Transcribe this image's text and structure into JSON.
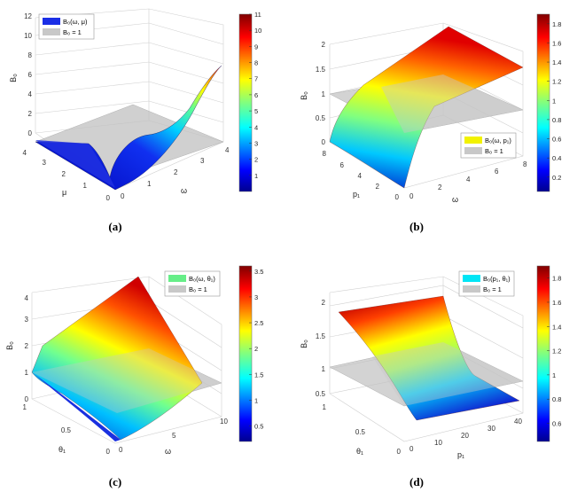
{
  "chart_data": [
    {
      "type": "surface3d",
      "caption": "(a)",
      "zlabel": "B₀",
      "xlabel": "ω",
      "ylabel": "μ",
      "xticks": [
        "0",
        "1",
        "2",
        "3",
        "4"
      ],
      "yticks": [
        "0",
        "1",
        "2",
        "3",
        "4"
      ],
      "zticks": [
        "0",
        "2",
        "4",
        "6",
        "8",
        "10",
        "12"
      ],
      "xlim": [
        0,
        4
      ],
      "ylim": [
        0,
        4
      ],
      "zlim": [
        0,
        12
      ],
      "colorbar_ticks": [
        "1",
        "2",
        "3",
        "4",
        "5",
        "6",
        "7",
        "8",
        "9",
        "10",
        "11"
      ],
      "colorbar_range": [
        0,
        11
      ],
      "legend": [
        {
          "label": "B₀(ω, μ)",
          "color": "#1a2ee6"
        },
        {
          "label": "B₀ = 1",
          "color": "#c8c8c8"
        }
      ],
      "legend_position": "top-left",
      "surface_max": 10,
      "plane_level": 1
    },
    {
      "type": "surface3d",
      "caption": "(b)",
      "zlabel": "B₀",
      "xlabel": "ω",
      "ylabel": "p₁",
      "xticks": [
        "0",
        "2",
        "4",
        "6",
        "8"
      ],
      "yticks": [
        "0",
        "2",
        "4",
        "6",
        "8"
      ],
      "zticks": [
        "0",
        "0.5",
        "1",
        "1.5",
        "2"
      ],
      "xlim": [
        0,
        8
      ],
      "ylim": [
        0,
        8
      ],
      "zlim": [
        0,
        2
      ],
      "colorbar_ticks": [
        "0.2",
        "0.4",
        "0.6",
        "0.8",
        "1",
        "1.2",
        "1.4",
        "1.6",
        "1.8"
      ],
      "colorbar_range": [
        0.05,
        1.9
      ],
      "legend": [
        {
          "label": "B₀(ω, p₁)",
          "color": "#f2f200"
        },
        {
          "label": "B₀ = 1",
          "color": "#c8c8c8"
        }
      ],
      "legend_position": "bottom-right",
      "surface_max": 1.9,
      "plane_level": 1
    },
    {
      "type": "surface3d",
      "caption": "(c)",
      "zlabel": "B₀",
      "xlabel": "ω",
      "ylabel": "θ₁",
      "xticks": [
        "0",
        "5",
        "10"
      ],
      "yticks": [
        "0",
        "0.5",
        "1"
      ],
      "zticks": [
        "0",
        "1",
        "2",
        "3",
        "4"
      ],
      "xlim": [
        0,
        10
      ],
      "ylim": [
        0,
        1
      ],
      "zlim": [
        0,
        4
      ],
      "colorbar_ticks": [
        "0.5",
        "1",
        "1.5",
        "2",
        "2.5",
        "3",
        "3.5"
      ],
      "colorbar_range": [
        0.2,
        3.6
      ],
      "legend": [
        {
          "label": "B₀(ω, θ₁)",
          "color": "#66ee88"
        },
        {
          "label": "B₀ = 1",
          "color": "#c8c8c8"
        }
      ],
      "legend_position": "top-right",
      "surface_max": 3.6,
      "plane_level": 1
    },
    {
      "type": "surface3d",
      "caption": "(d)",
      "zlabel": "B₀",
      "xlabel": "p₁",
      "ylabel": "θ₁",
      "xticks": [
        "0",
        "10",
        "20",
        "30",
        "40"
      ],
      "yticks": [
        "0",
        "0.5",
        "1"
      ],
      "zticks": [
        "0.5",
        "1",
        "1.5",
        "2"
      ],
      "xlim": [
        0,
        40
      ],
      "ylim": [
        0,
        1
      ],
      "zlim": [
        0.5,
        2
      ],
      "colorbar_ticks": [
        "0.6",
        "0.8",
        "1",
        "1.2",
        "1.4",
        "1.6",
        "1.8"
      ],
      "colorbar_range": [
        0.45,
        1.9
      ],
      "legend": [
        {
          "label": "B₀(p₁, θ₁)",
          "color": "#00e5f5"
        },
        {
          "label": "B₀ = 1",
          "color": "#c8c8c8"
        }
      ],
      "legend_position": "top-right",
      "surface_max": 1.85,
      "plane_level": 1
    }
  ]
}
